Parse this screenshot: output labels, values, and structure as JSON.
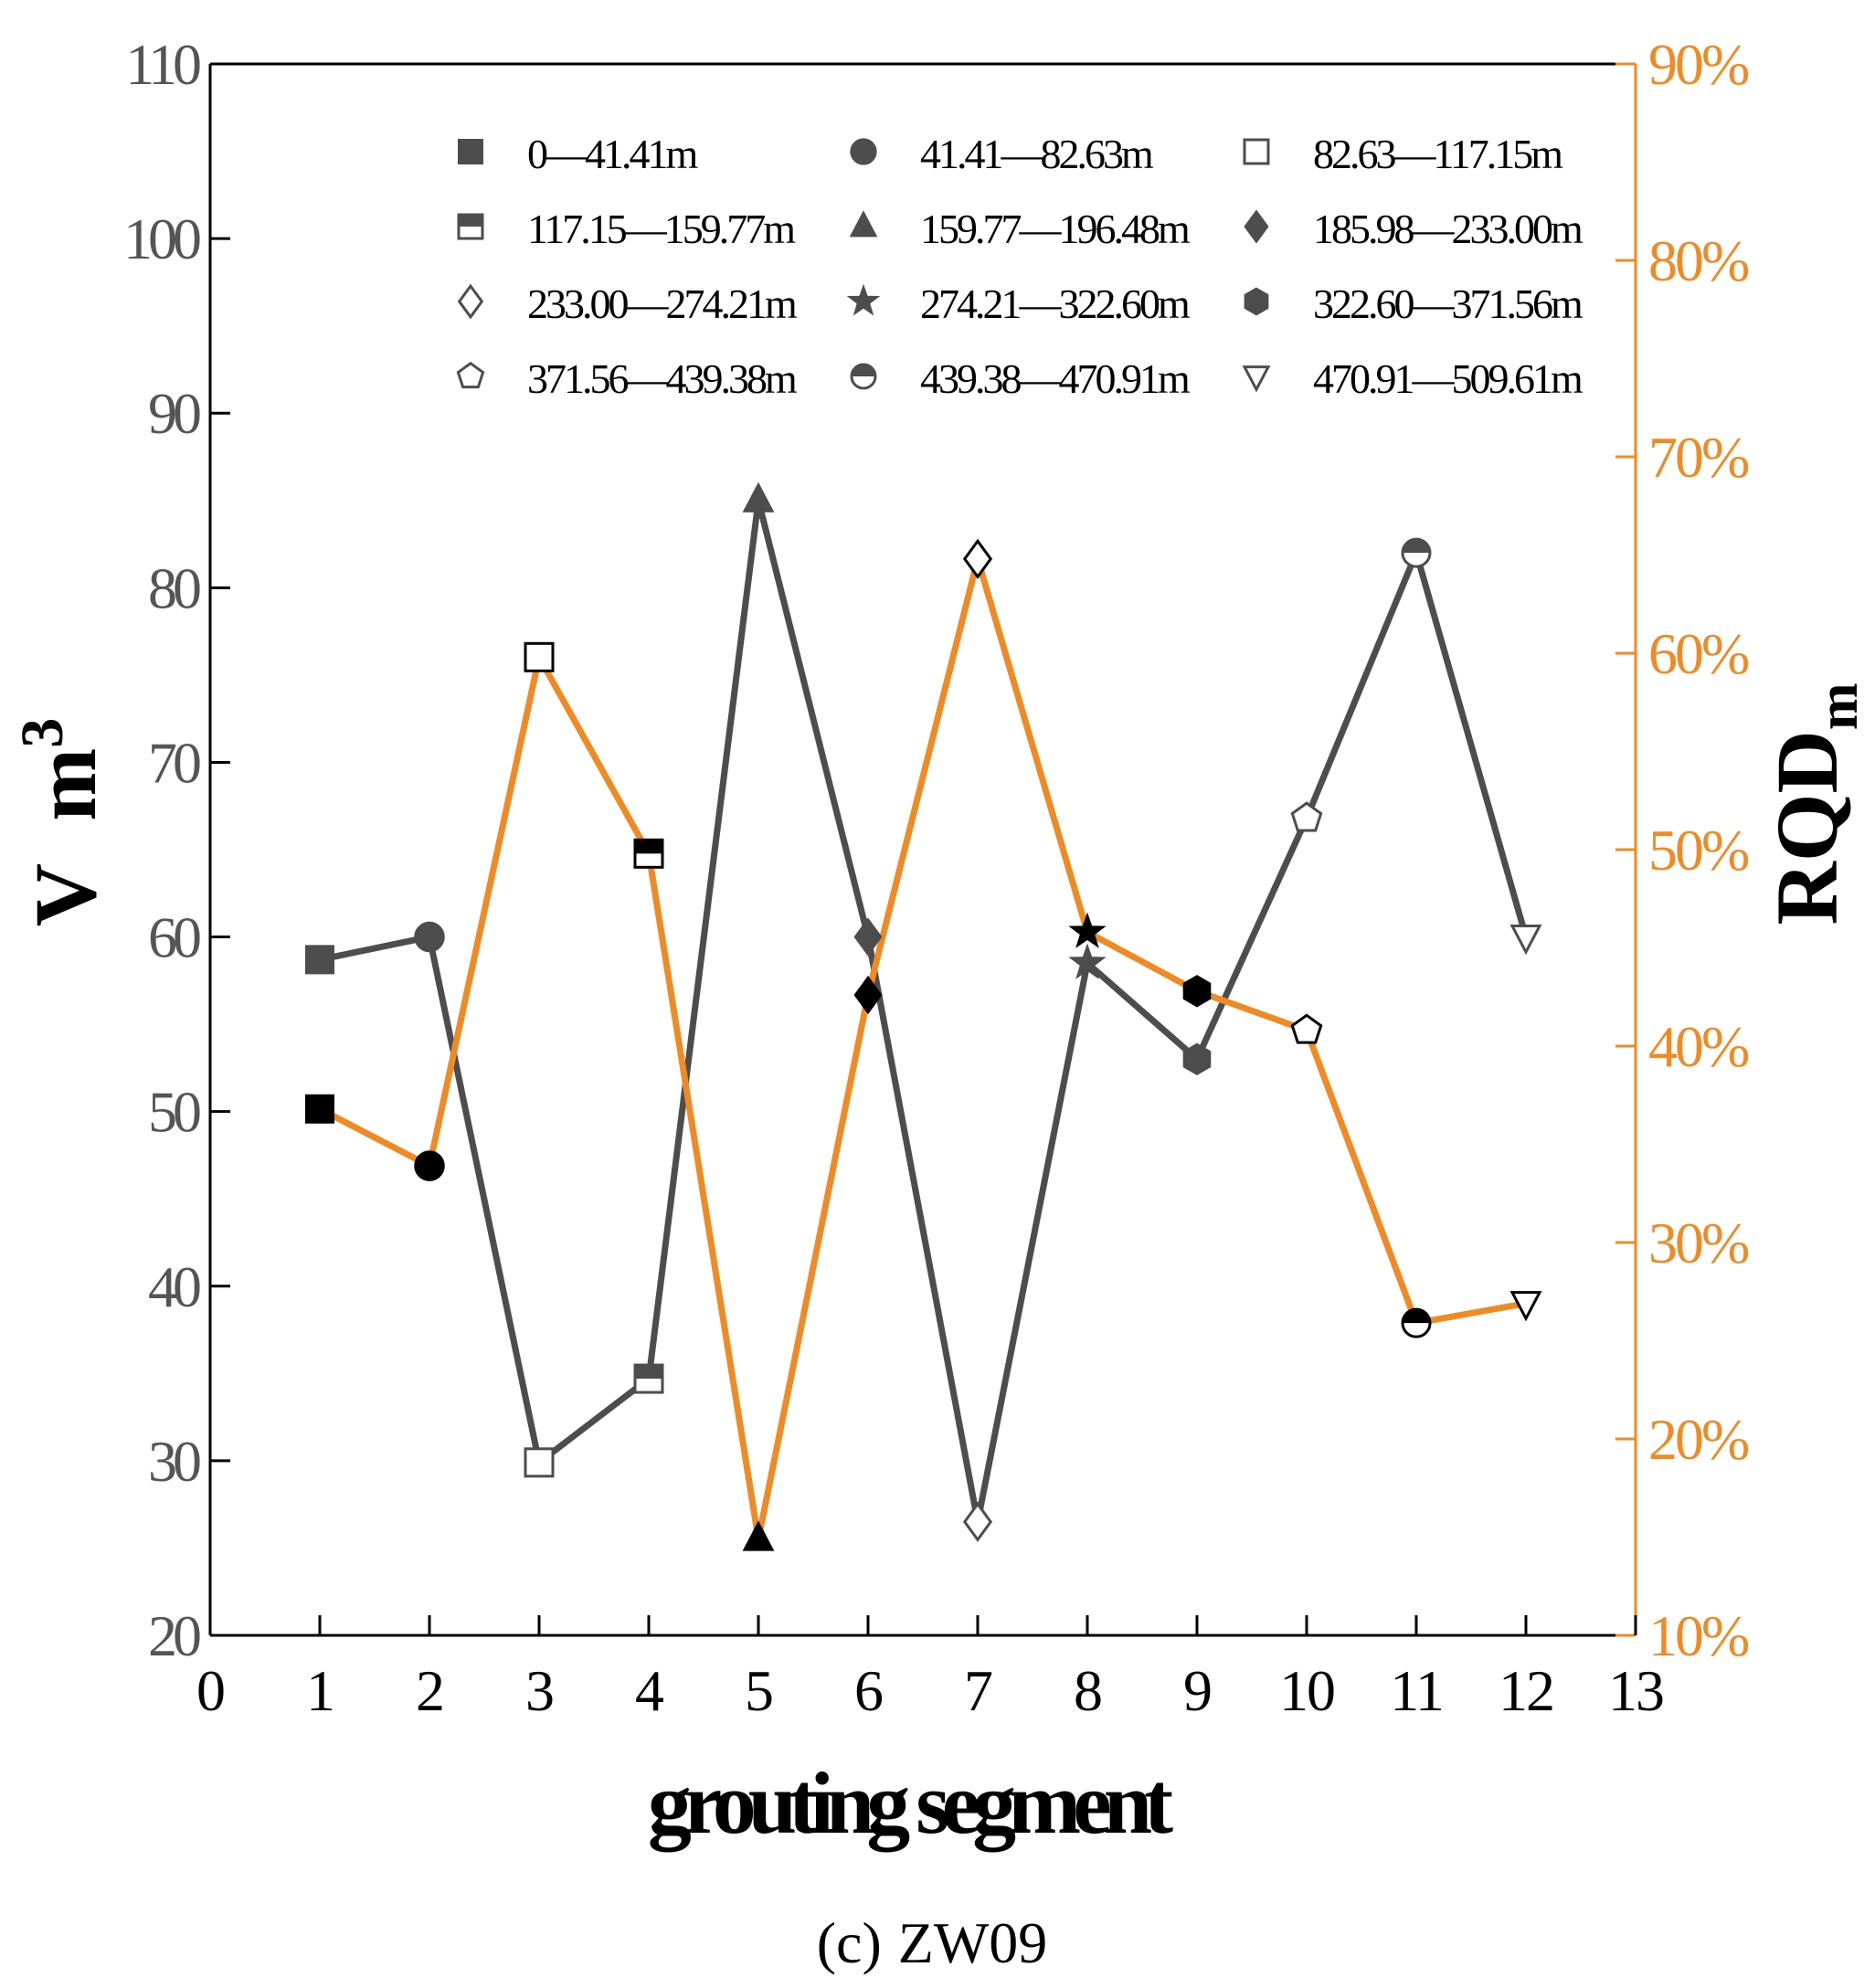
{
  "chart_data": {
    "type": "line",
    "title": "(c) ZW09",
    "caption_prefix": "(c)",
    "caption_name": "ZW09",
    "xlabel": "grouting segment",
    "ylabel_left": "V  m3",
    "ylabel_left_main": "V  m",
    "ylabel_left_sup": "3",
    "ylabel_right": "RQDm",
    "ylabel_right_main": "RQD",
    "ylabel_right_sub": "m",
    "xlim": [
      0,
      13
    ],
    "ylim_left": [
      20,
      110
    ],
    "ylim_right": [
      10,
      90
    ],
    "x_ticks": [
      "0",
      "1",
      "2",
      "3",
      "4",
      "5",
      "6",
      "7",
      "8",
      "9",
      "10",
      "11",
      "12",
      "13"
    ],
    "y_left_ticks": [
      "20",
      "30",
      "40",
      "50",
      "60",
      "70",
      "80",
      "90",
      "100",
      "110"
    ],
    "y_right_ticks": [
      "10%",
      "20%",
      "30%",
      "40%",
      "50%",
      "60%",
      "70%",
      "80%",
      "90%"
    ],
    "x": [
      1,
      2,
      3,
      4,
      5,
      6,
      7,
      8,
      9,
      10,
      11,
      12
    ],
    "series": [
      {
        "name": "V (m3)",
        "axis": "left",
        "color": "#4d4d4d",
        "values": [
          58.7,
          60.0,
          29.9,
          34.7,
          85.0,
          60.0,
          26.5,
          58.5,
          53.0,
          66.8,
          82.0,
          60.0
        ],
        "marker_fill": "#4d4d4d"
      },
      {
        "name": "RQDm (%)",
        "axis": "right",
        "color": "#f08a24",
        "values": [
          36.8,
          33.9,
          59.8,
          49.8,
          14.9,
          42.6,
          64.8,
          45.8,
          42.8,
          40.8,
          25.9,
          26.9
        ],
        "marker_fill": "#000000"
      }
    ],
    "legend": [
      {
        "label": "0—41.41m",
        "marker": "square-filled"
      },
      {
        "label": "41.41—82.63m",
        "marker": "circle-filled"
      },
      {
        "label": "82.63—117.15m",
        "marker": "square-open"
      },
      {
        "label": "117.15—159.77m",
        "marker": "square-half"
      },
      {
        "label": "159.77—196.48m",
        "marker": "triangle-up"
      },
      {
        "label": "185.98—233.00m",
        "marker": "diamond-filled"
      },
      {
        "label": "233.00—274.21m",
        "marker": "diamond-open"
      },
      {
        "label": "274.21—322.60m",
        "marker": "star"
      },
      {
        "label": "322.60—371.56m",
        "marker": "hexagon"
      },
      {
        "label": "371.56—439.38m",
        "marker": "pentagon-open"
      },
      {
        "label": "439.38—470.91m",
        "marker": "circle-half"
      },
      {
        "label": "470.91—509.61m",
        "marker": "triangle-down"
      }
    ],
    "legend_position": "top"
  }
}
